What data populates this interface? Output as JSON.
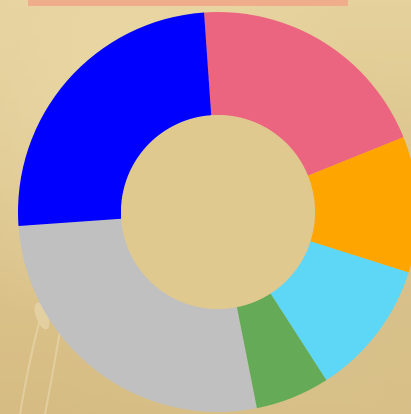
{
  "chart_data": {
    "type": "pie",
    "variant": "donut",
    "title": "",
    "legend": false,
    "slices": [
      {
        "value": 20.0,
        "color": "#eb6480"
      },
      {
        "value": 11.0,
        "color": "#ffa500"
      },
      {
        "value": 11.0,
        "color": "#5ed7f7"
      },
      {
        "value": 6.0,
        "color": "#65ab57"
      },
      {
        "value": 27.0,
        "color": "#c0c0c0"
      },
      {
        "value": 25.0,
        "color": "#0000ff"
      }
    ],
    "inner_color": "#e0c98f"
  }
}
